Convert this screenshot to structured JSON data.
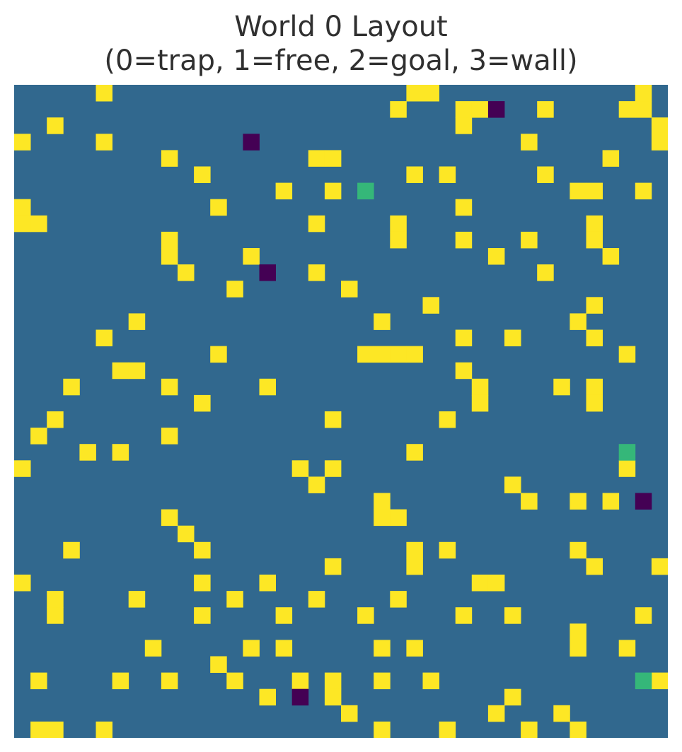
{
  "chart_data": {
    "type": "heatmap",
    "title": "World 0 Layout",
    "subtitle": "(0=trap, 1=free, 2=goal, 3=wall)",
    "rows": 40,
    "cols": 40,
    "legend_values": {
      "trap": 0,
      "free": 1,
      "goal": 2,
      "wall": 3
    },
    "colors": {
      "0": "#440154",
      "1": "#31688e",
      "2": "#35b779",
      "3": "#fde725"
    },
    "traps": [
      [
        1,
        29
      ],
      [
        3,
        14
      ],
      [
        11,
        15
      ],
      [
        25,
        38
      ],
      [
        37,
        17
      ]
    ],
    "goals": [
      [
        6,
        21
      ],
      [
        22,
        37
      ],
      [
        36,
        38
      ]
    ],
    "walls": [
      [
        0,
        5
      ],
      [
        0,
        24
      ],
      [
        0,
        25
      ],
      [
        0,
        38
      ],
      [
        1,
        23
      ],
      [
        1,
        27
      ],
      [
        1,
        28
      ],
      [
        1,
        32
      ],
      [
        1,
        37
      ],
      [
        1,
        38
      ],
      [
        2,
        2
      ],
      [
        2,
        27
      ],
      [
        2,
        39
      ],
      [
        3,
        0
      ],
      [
        3,
        5
      ],
      [
        3,
        31
      ],
      [
        3,
        39
      ],
      [
        4,
        9
      ],
      [
        4,
        18
      ],
      [
        4,
        19
      ],
      [
        4,
        36
      ],
      [
        5,
        11
      ],
      [
        5,
        24
      ],
      [
        5,
        26
      ],
      [
        5,
        32
      ],
      [
        6,
        16
      ],
      [
        6,
        19
      ],
      [
        6,
        34
      ],
      [
        6,
        35
      ],
      [
        6,
        38
      ],
      [
        7,
        0
      ],
      [
        7,
        12
      ],
      [
        7,
        27
      ],
      [
        8,
        0
      ],
      [
        8,
        1
      ],
      [
        8,
        18
      ],
      [
        8,
        23
      ],
      [
        8,
        35
      ],
      [
        9,
        9
      ],
      [
        9,
        23
      ],
      [
        9,
        27
      ],
      [
        9,
        31
      ],
      [
        9,
        35
      ],
      [
        10,
        9
      ],
      [
        10,
        14
      ],
      [
        10,
        29
      ],
      [
        10,
        36
      ],
      [
        11,
        10
      ],
      [
        11,
        18
      ],
      [
        11,
        32
      ],
      [
        12,
        13
      ],
      [
        12,
        20
      ],
      [
        13,
        25
      ],
      [
        13,
        35
      ],
      [
        14,
        7
      ],
      [
        14,
        22
      ],
      [
        14,
        34
      ],
      [
        15,
        5
      ],
      [
        15,
        27
      ],
      [
        15,
        30
      ],
      [
        15,
        35
      ],
      [
        16,
        12
      ],
      [
        16,
        21
      ],
      [
        16,
        22
      ],
      [
        16,
        23
      ],
      [
        16,
        24
      ],
      [
        16,
        37
      ],
      [
        17,
        6
      ],
      [
        17,
        7
      ],
      [
        17,
        27
      ],
      [
        18,
        3
      ],
      [
        18,
        9
      ],
      [
        18,
        15
      ],
      [
        18,
        28
      ],
      [
        18,
        33
      ],
      [
        18,
        35
      ],
      [
        19,
        11
      ],
      [
        19,
        28
      ],
      [
        19,
        35
      ],
      [
        20,
        2
      ],
      [
        20,
        19
      ],
      [
        20,
        26
      ],
      [
        21,
        1
      ],
      [
        21,
        9
      ],
      [
        22,
        4
      ],
      [
        22,
        6
      ],
      [
        22,
        24
      ],
      [
        23,
        0
      ],
      [
        23,
        17
      ],
      [
        23,
        19
      ],
      [
        23,
        37
      ],
      [
        24,
        18
      ],
      [
        24,
        30
      ],
      [
        25,
        22
      ],
      [
        25,
        31
      ],
      [
        25,
        34
      ],
      [
        25,
        36
      ],
      [
        26,
        9
      ],
      [
        26,
        22
      ],
      [
        26,
        23
      ],
      [
        27,
        10
      ],
      [
        28,
        3
      ],
      [
        28,
        11
      ],
      [
        28,
        24
      ],
      [
        28,
        26
      ],
      [
        28,
        34
      ],
      [
        29,
        19
      ],
      [
        29,
        24
      ],
      [
        29,
        35
      ],
      [
        29,
        39
      ],
      [
        30,
        0
      ],
      [
        30,
        11
      ],
      [
        30,
        15
      ],
      [
        30,
        28
      ],
      [
        30,
        29
      ],
      [
        31,
        2
      ],
      [
        31,
        7
      ],
      [
        31,
        13
      ],
      [
        31,
        18
      ],
      [
        31,
        23
      ],
      [
        32,
        2
      ],
      [
        32,
        11
      ],
      [
        32,
        16
      ],
      [
        32,
        21
      ],
      [
        32,
        27
      ],
      [
        32,
        30
      ],
      [
        32,
        38
      ],
      [
        33,
        34
      ],
      [
        34,
        8
      ],
      [
        34,
        14
      ],
      [
        34,
        16
      ],
      [
        34,
        22
      ],
      [
        34,
        24
      ],
      [
        34,
        34
      ],
      [
        34,
        37
      ],
      [
        35,
        12
      ],
      [
        36,
        1
      ],
      [
        36,
        6
      ],
      [
        36,
        9
      ],
      [
        36,
        13
      ],
      [
        36,
        17
      ],
      [
        36,
        19
      ],
      [
        36,
        22
      ],
      [
        36,
        25
      ],
      [
        36,
        39
      ],
      [
        37,
        15
      ],
      [
        37,
        19
      ],
      [
        37,
        30
      ],
      [
        38,
        20
      ],
      [
        38,
        29
      ],
      [
        38,
        33
      ],
      [
        39,
        1
      ],
      [
        39,
        2
      ],
      [
        39,
        5
      ],
      [
        39,
        22
      ],
      [
        39,
        26
      ],
      [
        39,
        31
      ],
      [
        39,
        34
      ]
    ]
  }
}
